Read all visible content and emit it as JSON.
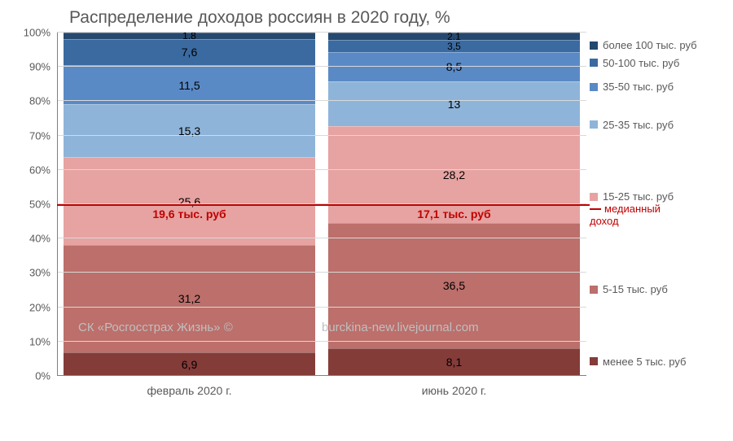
{
  "chart": {
    "type": "stacked-bar-100pct",
    "title": "Распределение доходов россиян в 2020 году, %",
    "title_fontsize": 21,
    "title_color": "#595959",
    "background_color": "#ffffff",
    "grid_color": "#d9d9d9",
    "axis_color": "#808080",
    "label_color": "#595959",
    "ylim": [
      0,
      100
    ],
    "ytick_step": 10,
    "yticks": [
      "0%",
      "10%",
      "20%",
      "30%",
      "40%",
      "50%",
      "60%",
      "70%",
      "80%",
      "90%",
      "100%"
    ],
    "categories": [
      "февраль 2020 г.",
      "июнь 2020 г."
    ],
    "series": [
      {
        "key": "lt5",
        "label": "менее 5 тыс. руб",
        "color": "#843c39"
      },
      {
        "key": "5_15",
        "label": "5-15 тыс. руб",
        "color": "#bc6f6b"
      },
      {
        "key": "15_25",
        "label": "15-25 тыс. руб",
        "color": "#e6a3a1"
      },
      {
        "key": "25_35",
        "label": "25-35 тыс. руб",
        "color": "#8fb4d9"
      },
      {
        "key": "35_50",
        "label": "35-50 тыс. руб",
        "color": "#5a8ac6"
      },
      {
        "key": "50_100",
        "label": "50-100 тыс. руб",
        "color": "#3b6aa0"
      },
      {
        "key": "gt100",
        "label": "более 100 тыс. руб",
        "color": "#24486e"
      }
    ],
    "values": {
      "феб": {
        "lt5": 6.9,
        "5_15": 31.2,
        "15_25": 25.6,
        "25_35": 15.3,
        "35_50": 11.5,
        "50_100": 7.6,
        "gt100": 1.8
      },
      "июн": {
        "lt5": 8.1,
        "5_15": 36.5,
        "15_25": 28.2,
        "25_35": 13.0,
        "35_50": 8.5,
        "50_100": 3.5,
        "gt100": 2.1
      }
    },
    "value_labels": {
      "феб": {
        "lt5": "6,9",
        "5_15": "31,2",
        "15_25": "25,6",
        "25_35": "15,3",
        "35_50": "11,5",
        "50_100": "7,6",
        "gt100": "1,8"
      },
      "июн": {
        "lt5": "8,1",
        "5_15": "36,5",
        "15_25": "28,2",
        "25_35": "13",
        "35_50": "8,5",
        "50_100": "3,5",
        "gt100": "2,1"
      }
    },
    "median": {
      "position_pct": 50,
      "line_color": "#c00000",
      "legend_label": "медианный доход",
      "labels": [
        "19,6 тыс. руб",
        "17,1 тыс. руб"
      ]
    },
    "watermark": {
      "left": "СК «Росгосстрах Жизнь» ©",
      "right": "burckina-new.livejournal.com",
      "color": "#bfbfbf"
    },
    "legend_positions_pct": {
      "gt100": 2,
      "50_100": 7,
      "35_50": 14,
      "25_35": 25,
      "15_25": 46,
      "median": 49.5,
      "5_15": 73,
      "lt5": 94
    }
  }
}
